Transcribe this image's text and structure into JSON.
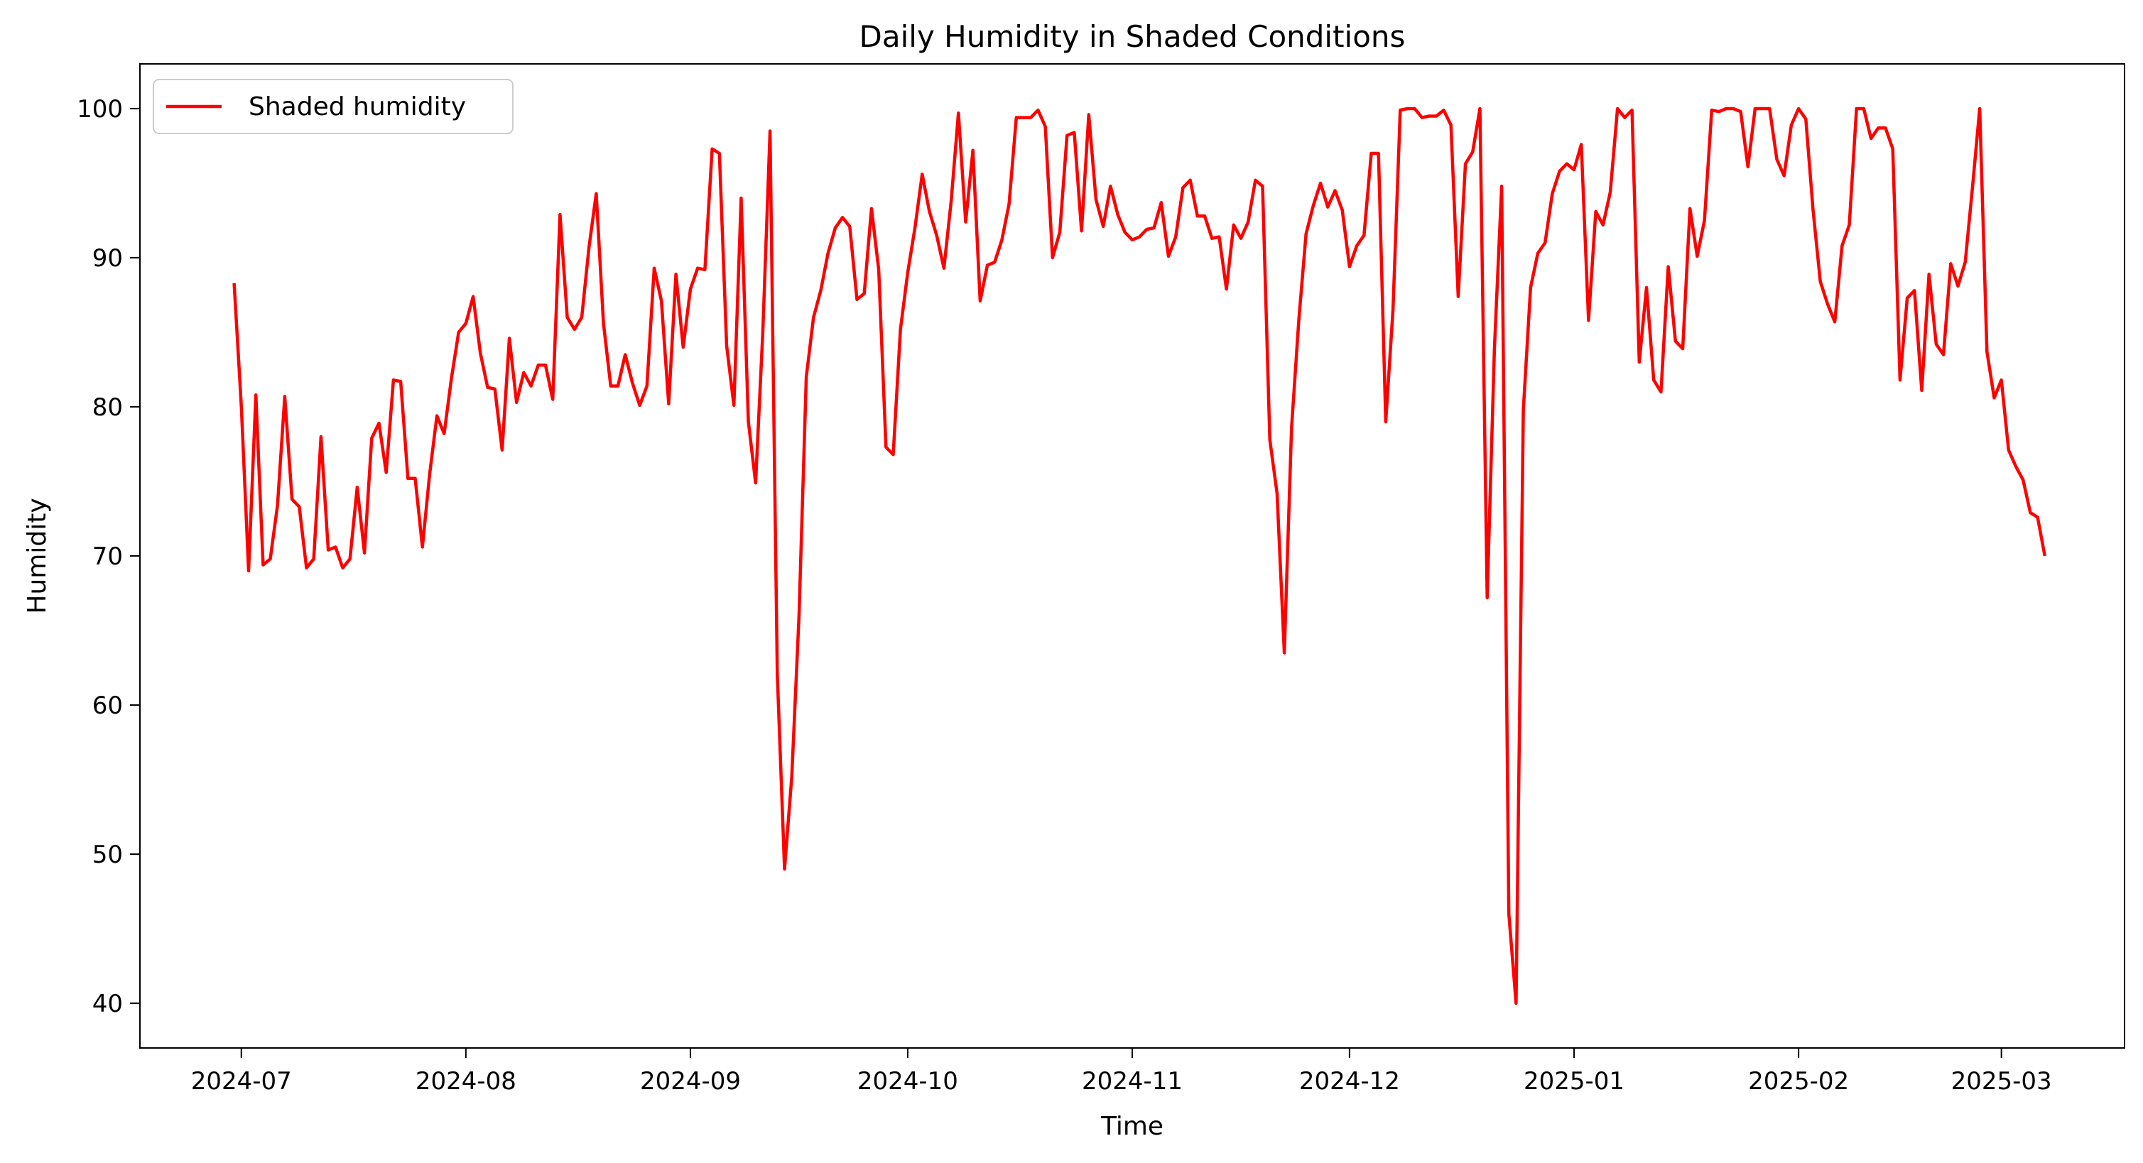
{
  "chart_data": {
    "type": "line",
    "title": "Daily Humidity in Shaded Conditions",
    "xlabel": "Time",
    "ylabel": "Humidity",
    "ylim": [
      37.0,
      103.0
    ],
    "xlim": [
      "2024-06-17",
      "2025-03-18"
    ],
    "x_ticks": [
      "2024-07",
      "2024-08",
      "2024-09",
      "2024-10",
      "2024-11",
      "2024-12",
      "2025-01",
      "2025-02",
      "2025-03"
    ],
    "y_ticks": [
      40,
      50,
      60,
      70,
      80,
      90,
      100
    ],
    "grid": false,
    "legend": {
      "position": "top-left",
      "entries": [
        "Shaded humidity"
      ]
    },
    "series": [
      {
        "name": "Shaded humidity",
        "color": "#ff0000",
        "x_start": "2024-06-30",
        "x_step": "1 day",
        "values": [
          88.3,
          80.0,
          69.0,
          80.8,
          69.4,
          69.8,
          73.4,
          80.7,
          73.8,
          73.3,
          69.2,
          69.8,
          78.0,
          70.4,
          70.6,
          69.2,
          69.8,
          74.6,
          70.2,
          77.9,
          78.9,
          75.6,
          81.8,
          81.7,
          75.2,
          75.2,
          70.6,
          75.5,
          79.4,
          78.2,
          81.9,
          85.0,
          85.6,
          87.4,
          83.6,
          81.3,
          81.2,
          77.1,
          84.6,
          80.3,
          82.3,
          81.4,
          82.8,
          82.8,
          80.5,
          92.9,
          86.0,
          85.2,
          86.0,
          90.7,
          94.3,
          85.6,
          81.4,
          81.4,
          83.5,
          81.6,
          80.1,
          81.4,
          89.3,
          87.1,
          80.2,
          88.9,
          84.0,
          87.9,
          89.3,
          89.2,
          97.3,
          97.0,
          84.1,
          80.1,
          94.0,
          79.0,
          74.9,
          85.0,
          98.5,
          62.1,
          49.0,
          55.2,
          66.0,
          82.0,
          86.0,
          87.8,
          90.3,
          92.0,
          92.7,
          92.1,
          87.2,
          87.6,
          93.3,
          89.2,
          77.3,
          76.8,
          85.2,
          89.0,
          92.0,
          95.6,
          93.1,
          91.5,
          89.3,
          93.8,
          99.7,
          92.4,
          97.2,
          87.1,
          89.5,
          89.7,
          91.2,
          93.6,
          99.4,
          99.4,
          99.4,
          99.9,
          98.8,
          90.0,
          91.7,
          98.2,
          98.4,
          91.8,
          99.6,
          93.9,
          92.1,
          94.8,
          92.9,
          91.7,
          91.2,
          91.4,
          91.9,
          92.0,
          93.7,
          90.1,
          91.4,
          94.7,
          95.2,
          92.8,
          92.8,
          91.3,
          91.4,
          87.9,
          92.2,
          91.3,
          92.4,
          95.2,
          94.8,
          77.8,
          74.2,
          63.5,
          78.6,
          85.8,
          91.6,
          93.5,
          95.0,
          93.4,
          94.5,
          93.2,
          89.4,
          90.8,
          91.5,
          97.0,
          97.0,
          79.0,
          86.5,
          99.9,
          100.0,
          100.0,
          99.4,
          99.5,
          99.5,
          99.9,
          98.9,
          87.4,
          96.3,
          97.1,
          100.0,
          67.2,
          83.9,
          94.8,
          46.0,
          40.0,
          79.8,
          88.0,
          90.3,
          91.0,
          94.3,
          95.8,
          96.3,
          95.9,
          97.6,
          85.8,
          93.1,
          92.2,
          94.4,
          100.0,
          99.4,
          99.9,
          83.0,
          88.0,
          81.8,
          81.0,
          89.4,
          84.4,
          83.9,
          93.3,
          90.1,
          92.5,
          99.9,
          99.8,
          100.0,
          100.0,
          99.8,
          96.1,
          100.0,
          100.0,
          100.0,
          96.6,
          95.5,
          98.9,
          100.0,
          99.3,
          93.2,
          88.4,
          86.9,
          85.7,
          90.8,
          92.2,
          100.0,
          100.0,
          98.0,
          98.7,
          98.7,
          97.3,
          81.8,
          87.3,
          87.8,
          81.1,
          88.9,
          84.2,
          83.5,
          89.6,
          88.1,
          89.7,
          94.7,
          100.0,
          83.7,
          80.6,
          81.8,
          77.1,
          76.0,
          75.1,
          72.9,
          72.6,
          70.0
        ]
      }
    ]
  }
}
